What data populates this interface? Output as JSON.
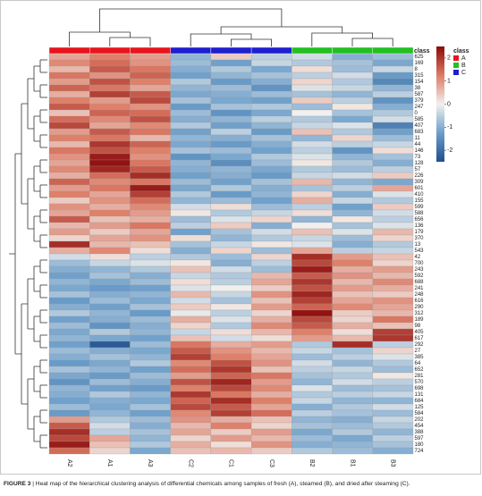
{
  "chart_data": {
    "type": "heatmap",
    "columns": [
      "A2",
      "A1",
      "A3",
      "C2",
      "C1",
      "C3",
      "B2",
      "B1",
      "B3"
    ],
    "column_classes": [
      "A",
      "A",
      "A",
      "C",
      "C",
      "C",
      "B",
      "B",
      "B"
    ],
    "class_label": "class",
    "legend": {
      "title": "class",
      "entries": [
        {
          "name": "A",
          "color": "#e8141c"
        },
        {
          "name": "B",
          "color": "#22c022"
        },
        {
          "name": "C",
          "color": "#1f1fd0"
        }
      ]
    },
    "colorscale": [
      "#1f4e8c",
      "#6b9ecb",
      "#f2f0ee",
      "#dd7b65",
      "#8b0a0a"
    ],
    "zlim": [
      -2.5,
      2.5
    ],
    "colorbar_ticks": [
      2,
      1,
      0,
      -1,
      -2
    ],
    "rows": [
      "625",
      "169",
      "8",
      "315",
      "154",
      "38",
      "587",
      "379",
      "247",
      "0",
      "585",
      "407",
      "683",
      "11",
      "44",
      "146",
      "73",
      "128",
      "57",
      "226",
      "309",
      "601",
      "410",
      "155",
      "599",
      "588",
      "656",
      "136",
      "179",
      "370",
      "13",
      "543",
      "42",
      "700",
      "243",
      "592",
      "688",
      "241",
      "248",
      "616",
      "290",
      "312",
      "189",
      "98",
      "405",
      "617",
      "292",
      "27",
      "385",
      "64",
      "652",
      "281",
      "570",
      "698",
      "131",
      "684",
      "125",
      "584",
      "202",
      "454",
      "388",
      "597",
      "180",
      "724"
    ],
    "values": [
      [
        0.8,
        1.2,
        0.9,
        -0.9,
        0.4,
        -0.5,
        -0.3,
        -1.0,
        -0.8
      ],
      [
        1.1,
        1.4,
        1.0,
        -0.8,
        -1.2,
        -0.4,
        -0.6,
        -0.7,
        -1.1
      ],
      [
        0.6,
        1.6,
        1.3,
        -1.0,
        -0.6,
        -1.1,
        0.2,
        -0.8,
        -0.4
      ],
      [
        1.3,
        1.0,
        1.5,
        -1.2,
        -0.9,
        -0.7,
        -0.5,
        -0.3,
        -1.3
      ],
      [
        0.9,
        1.7,
        1.2,
        -0.6,
        -1.3,
        -1.0,
        0.3,
        -0.6,
        -1.6
      ],
      [
        1.5,
        1.3,
        0.8,
        -0.9,
        -0.8,
        -1.4,
        -0.2,
        -0.4,
        -0.9
      ],
      [
        0.7,
        1.9,
        1.6,
        -1.1,
        -1.0,
        -0.8,
        -0.7,
        -0.9,
        -0.5
      ],
      [
        1.2,
        0.9,
        1.8,
        -0.7,
        -1.1,
        -1.2,
        0.4,
        -0.5,
        -1.4
      ],
      [
        1.6,
        1.2,
        1.0,
        -1.3,
        -0.7,
        -0.6,
        -0.8,
        0.1,
        -1.0
      ],
      [
        0.5,
        1.5,
        1.4,
        -0.8,
        -1.4,
        -1.1,
        0.0,
        -0.7,
        -0.6
      ],
      [
        1.4,
        1.1,
        1.7,
        -1.0,
        -0.9,
        -0.5,
        -0.6,
        -1.1,
        -0.3
      ],
      [
        1.8,
        0.8,
        1.1,
        -0.6,
        -1.2,
        -0.9,
        -0.4,
        -0.2,
        -1.7
      ],
      [
        0.9,
        1.6,
        1.3,
        -1.2,
        -0.5,
        -1.3,
        0.5,
        -0.6,
        -1.2
      ],
      [
        1.2,
        1.3,
        0.6,
        -0.9,
        -1.0,
        -0.7,
        -0.9,
        0.3,
        -0.8
      ],
      [
        0.6,
        2.0,
        1.5,
        -1.1,
        -1.3,
        -1.0,
        -0.3,
        -0.5,
        -0.4
      ],
      [
        1.3,
        1.7,
        1.2,
        -0.7,
        -0.8,
        -1.2,
        -0.5,
        -1.4,
        0.2
      ],
      [
        1.0,
        2.3,
        1.0,
        -1.4,
        -1.1,
        -0.6,
        -0.2,
        -0.9,
        -0.7
      ],
      [
        0.8,
        2.4,
        1.3,
        -0.9,
        -1.5,
        -0.8,
        0.1,
        -0.6,
        -1.0
      ],
      [
        1.1,
        2.2,
        1.6,
        -1.0,
        -0.9,
        -1.1,
        -0.6,
        -0.8,
        -0.5
      ],
      [
        0.7,
        1.4,
        2.1,
        -1.2,
        -1.0,
        -1.3,
        -0.4,
        -0.3,
        0.4
      ],
      [
        1.5,
        1.1,
        1.3,
        -0.8,
        -1.2,
        -0.7,
        0.6,
        -0.9,
        -1.1
      ],
      [
        0.9,
        1.3,
        2.3,
        -1.1,
        -0.6,
        -1.0,
        -0.7,
        -0.5,
        0.8
      ],
      [
        1.2,
        0.8,
        1.9,
        -0.6,
        -1.3,
        -0.9,
        0.3,
        -1.0,
        -0.2
      ],
      [
        0.4,
        1.0,
        1.4,
        -0.9,
        -0.8,
        -1.2,
        0.7,
        -0.4,
        -0.6
      ],
      [
        1.0,
        0.7,
        1.1,
        -0.3,
        0.2,
        -0.8,
        -0.5,
        -1.2,
        0.4
      ],
      [
        0.8,
        1.2,
        0.9,
        0.1,
        -0.6,
        -0.4,
        0.2,
        -0.9,
        -0.3
      ],
      [
        1.6,
        0.5,
        0.7,
        -0.8,
        -0.2,
        0.3,
        -0.9,
        0.1,
        -0.5
      ],
      [
        0.6,
        0.9,
        1.3,
        -0.5,
        0.4,
        -1.0,
        0.0,
        -0.7,
        -0.2
      ],
      [
        0.9,
        0.4,
        0.8,
        -1.2,
        -0.7,
        -0.3,
        0.5,
        -0.2,
        0.6
      ],
      [
        0.3,
        0.8,
        1.0,
        0.2,
        -0.9,
        -0.6,
        -0.4,
        -0.8,
        0.3
      ],
      [
        2.1,
        0.6,
        0.5,
        -0.7,
        -0.4,
        0.1,
        -0.2,
        -1.0,
        -0.6
      ],
      [
        0.7,
        1.1,
        0.2,
        -1.0,
        0.3,
        -0.8,
        0.8,
        -0.5,
        -0.4
      ],
      [
        -0.3,
        0.2,
        -0.5,
        -0.6,
        -0.8,
        0.3,
        2.1,
        0.9,
        0.5
      ],
      [
        -0.8,
        -0.4,
        -0.2,
        0.1,
        -1.0,
        -0.5,
        1.8,
        1.2,
        0.3
      ],
      [
        -1.0,
        -0.9,
        -0.6,
        0.5,
        -0.3,
        -0.8,
        2.3,
        0.7,
        0.9
      ],
      [
        -1.2,
        -0.7,
        -1.0,
        -0.4,
        -0.6,
        0.6,
        1.6,
        1.0,
        0.6
      ],
      [
        -0.9,
        -1.1,
        -0.8,
        0.2,
        -0.5,
        0.8,
        2.0,
        0.6,
        1.1
      ],
      [
        -1.1,
        -1.3,
        -1.2,
        -0.2,
        0.0,
        0.4,
        1.7,
        0.9,
        0.7
      ],
      [
        -0.7,
        -1.0,
        -0.9,
        0.6,
        -0.4,
        1.0,
        2.2,
        0.5,
        0.4
      ],
      [
        -1.3,
        -0.8,
        -1.1,
        -0.3,
        -0.7,
        0.5,
        1.9,
        0.8,
        1.0
      ],
      [
        -1.0,
        -1.2,
        -0.7,
        0.4,
        0.1,
        0.9,
        1.5,
        1.1,
        0.8
      ],
      [
        -0.6,
        -0.9,
        -1.3,
        -0.1,
        -0.5,
        0.3,
        2.4,
        0.4,
        0.6
      ],
      [
        -1.2,
        -1.0,
        -0.8,
        0.7,
        -0.2,
        0.7,
        1.8,
        0.3,
        1.3
      ],
      [
        -0.8,
        -1.4,
        -1.0,
        0.3,
        -0.6,
        1.1,
        1.6,
        0.7,
        0.5
      ],
      [
        -1.1,
        -0.6,
        -0.9,
        -0.4,
        0.2,
        0.6,
        1.2,
        0.2,
        1.9
      ],
      [
        -0.9,
        -1.1,
        -1.2,
        0.5,
        -0.3,
        0.2,
        0.9,
        0.6,
        2.0
      ],
      [
        -1.2,
        -2.3,
        -0.8,
        1.3,
        0.7,
        0.9,
        -0.6,
        2.1,
        -0.5
      ],
      [
        -0.8,
        -1.0,
        -1.1,
        1.6,
        1.0,
        0.6,
        -0.4,
        -0.7,
        0.3
      ],
      [
        -1.0,
        -0.7,
        -0.9,
        1.9,
        1.2,
        0.8,
        -0.8,
        -0.5,
        -0.2
      ],
      [
        -1.3,
        -1.1,
        -0.6,
        1.1,
        1.7,
        1.0,
        -0.3,
        -0.9,
        -0.6
      ],
      [
        -0.7,
        -0.9,
        -1.2,
        1.4,
        2.0,
        0.5,
        -0.5,
        -0.4,
        -0.8
      ],
      [
        -1.1,
        -1.3,
        -0.8,
        0.9,
        1.5,
        1.3,
        -0.7,
        -0.6,
        0.1
      ],
      [
        -1.4,
        -0.8,
        -1.0,
        1.7,
        2.2,
        0.9,
        -0.9,
        -0.3,
        -0.5
      ],
      [
        -0.9,
        -1.2,
        -1.3,
        1.2,
        1.8,
        1.1,
        -0.2,
        -0.8,
        -0.7
      ],
      [
        -1.0,
        -0.6,
        -0.9,
        2.0,
        1.3,
        0.7,
        -0.6,
        -0.5,
        -0.4
      ],
      [
        -1.2,
        -1.0,
        -1.1,
        1.5,
        2.1,
        1.2,
        -0.4,
        -0.9,
        -0.9
      ],
      [
        -0.8,
        -1.1,
        -0.7,
        1.8,
        1.6,
        0.8,
        -1.0,
        -0.6,
        -0.3
      ],
      [
        -1.3,
        -0.9,
        -1.2,
        1.1,
        1.9,
        1.4,
        -0.5,
        -0.7,
        -0.8
      ],
      [
        0.9,
        -0.6,
        -0.8,
        1.0,
        0.7,
        0.5,
        -0.9,
        -1.0,
        -0.4
      ],
      [
        1.6,
        -0.3,
        -1.0,
        0.6,
        1.2,
        0.3,
        -0.7,
        -0.8,
        -0.6
      ],
      [
        2.1,
        -0.5,
        -0.7,
        0.8,
        0.4,
        0.9,
        -1.1,
        -0.6,
        -0.9
      ],
      [
        1.8,
        0.8,
        -0.9,
        0.3,
        0.9,
        0.6,
        -0.8,
        -1.1,
        -0.5
      ],
      [
        2.3,
        0.5,
        -0.6,
        0.7,
        0.2,
        1.0,
        -1.0,
        -0.9,
        -0.7
      ],
      [
        1.4,
        0.3,
        -1.1,
        0.5,
        0.6,
        0.4,
        -0.6,
        -0.8,
        -1.0
      ]
    ],
    "caption": {
      "label": "FIGURE 3",
      "text": "| Heat map of the hierarchical clustering analysis of differential chemicals among samples of fresh (A), steamed (B), and dried after steaming (C)."
    }
  }
}
